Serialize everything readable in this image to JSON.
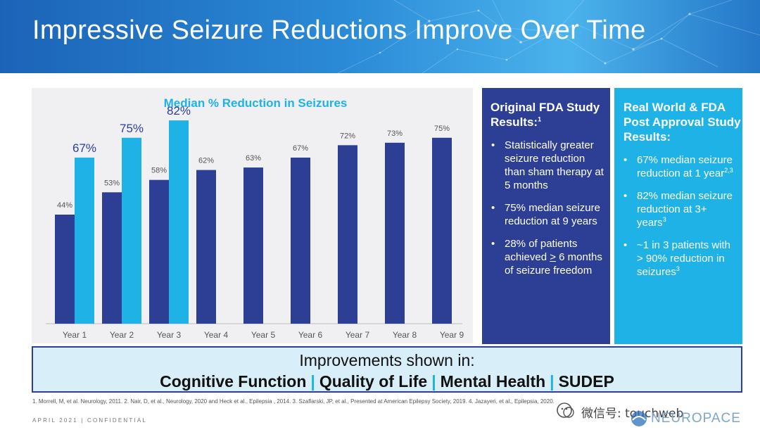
{
  "header": {
    "title": "Impressive Seizure Reductions Improve Over Time"
  },
  "chart_data": {
    "type": "bar",
    "title": "Median % Reduction in Seizures",
    "categories": [
      "Year 1",
      "Year 2",
      "Year 3",
      "Year 4",
      "Year 5",
      "Year 6",
      "Year 7",
      "Year 8",
      "Year 9"
    ],
    "series": [
      {
        "values": [
          44,
          53,
          58,
          62,
          63,
          67,
          72,
          73,
          75
        ],
        "color": "#2d3e95",
        "labels": [
          "44%",
          "53%",
          "58%",
          "62%",
          "63%",
          "67%",
          "72%",
          "73%",
          "75%"
        ]
      },
      {
        "values": [
          67,
          75,
          82,
          null,
          null,
          null,
          null,
          null,
          null
        ],
        "color": "#1eb2e6",
        "labels": [
          "67%",
          "75%",
          "82%",
          null,
          null,
          null,
          null,
          null,
          null
        ]
      }
    ],
    "ylim": [
      0,
      100
    ],
    "grid": false,
    "title_color": "#1eb2e6"
  },
  "fda_box": {
    "title": "Original FDA Study Results:",
    "title_sup": "1",
    "bullets": [
      {
        "text": "Statistically greater seizure reduction than sham therapy at 5 months"
      },
      {
        "text": "75% median seizure reduction at 9 years"
      },
      {
        "pre": "28% of patients achieved ",
        "underlined": ">",
        "post": " 6 months of seizure freedom"
      }
    ]
  },
  "rw_box": {
    "title": "Real World & FDA Post Approval Study Results:",
    "bullets": [
      {
        "text": "67% median seizure reduction at 1 year",
        "sup": "2,3"
      },
      {
        "text": "82% median seizure reduction at 3+ years",
        "sup": "3"
      },
      {
        "text": "~1 in 3 patients with > 90% reduction in seizures",
        "sup": "3"
      }
    ]
  },
  "improvements": {
    "heading": "Improvements shown in:",
    "items": [
      "Cognitive Function",
      "Quality of Life",
      "Mental Health",
      "SUDEP"
    ],
    "separator": "|"
  },
  "references": "1. Morrell, M, et al. Neurology, 2011.   2. Nair, D, et al., Neurology, 2020 and Heck et al., Epilepsia , 2014.   3. Szaflarski, JP, et al., Presented at American Epilepsy Society, 2019. 4. Jazayeri, et al., Epilepsia, 2020.",
  "footer": "APRIL 2021 | CONFIDENTIAL",
  "watermark": "微信号: touchweb",
  "logo": "NEUROPACE",
  "bullet_glyph": "•",
  "colors": {
    "navy": "#2d3e95",
    "cyan": "#1eb2e6"
  }
}
